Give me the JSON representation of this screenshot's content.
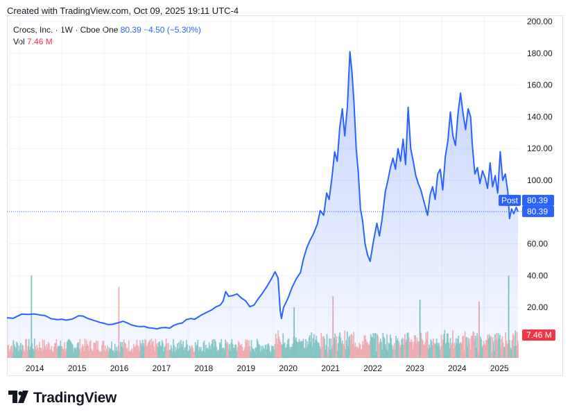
{
  "caption": "Created with TradingView.com, Oct 09, 2025 19:11 UTC-4",
  "legend": {
    "symbol": "Crocs, Inc. · 1W · Cboe One",
    "last": "80.39",
    "change": "−4.50 (−5.30%)",
    "vol_label": "Vol",
    "vol_value": "7.46 M"
  },
  "tags": {
    "post_label": "Post",
    "post_price": "80.39",
    "last_price": "80.39",
    "volume": "7.46 M"
  },
  "footer": {
    "brand": "TradingView",
    "logo_icon": "tradingview-logo-icon"
  },
  "colors": {
    "line": "#2962ff",
    "area_top": "#2962ff",
    "vol_up": "#7fc6bc",
    "vol_down": "#f7a9a7",
    "tag": "#2962ff",
    "vol_tag": "#f23645"
  },
  "chart_data": {
    "type": "area",
    "ylim": [
      0,
      200
    ],
    "y_ticks": [
      "200.00",
      "180.00",
      "160.00",
      "140.00",
      "120.00",
      "100.00",
      "80.00",
      "60.00",
      "40.00",
      "20.00"
    ],
    "x_ticks": [
      {
        "label": "2014",
        "x": 2014.0
      },
      {
        "label": "2015",
        "x": 2015.0
      },
      {
        "label": "2016",
        "x": 2016.0
      },
      {
        "label": "2017",
        "x": 2017.0
      },
      {
        "label": "2018",
        "x": 2018.0
      },
      {
        "label": "2019",
        "x": 2019.0
      },
      {
        "label": "2020",
        "x": 2020.0
      },
      {
        "label": "2021",
        "x": 2021.0
      },
      {
        "label": "2022",
        "x": 2022.0
      },
      {
        "label": "2023",
        "x": 2023.0
      },
      {
        "label": "2024",
        "x": 2024.0
      },
      {
        "label": "2025",
        "x": 2025.0
      }
    ],
    "xlim": [
      2013.7,
      2025.85
    ],
    "grid": true,
    "series": [
      {
        "values": [
          [
            2013.7,
            13.5
          ],
          [
            2013.85,
            13.2
          ],
          [
            2013.95,
            14.5
          ],
          [
            2014.05,
            15.8
          ],
          [
            2014.2,
            15.6
          ],
          [
            2014.35,
            15.9
          ],
          [
            2014.5,
            15.2
          ],
          [
            2014.6,
            14.9
          ],
          [
            2014.75,
            12.9
          ],
          [
            2014.9,
            12.3
          ],
          [
            2015.0,
            12.6
          ],
          [
            2015.1,
            12.0
          ],
          [
            2015.25,
            12.7
          ],
          [
            2015.4,
            14.8
          ],
          [
            2015.5,
            14.6
          ],
          [
            2015.62,
            13.0
          ],
          [
            2015.75,
            11.9
          ],
          [
            2015.9,
            10.6
          ],
          [
            2016.0,
            10.0
          ],
          [
            2016.1,
            9.2
          ],
          [
            2016.2,
            9.4
          ],
          [
            2016.35,
            10.5
          ],
          [
            2016.45,
            11.3
          ],
          [
            2016.55,
            10.2
          ],
          [
            2016.65,
            9.0
          ],
          [
            2016.75,
            8.3
          ],
          [
            2016.85,
            7.9
          ],
          [
            2016.95,
            8.1
          ],
          [
            2017.05,
            7.2
          ],
          [
            2017.15,
            7.0
          ],
          [
            2017.25,
            6.5
          ],
          [
            2017.35,
            7.2
          ],
          [
            2017.45,
            7.4
          ],
          [
            2017.55,
            7.0
          ],
          [
            2017.65,
            8.7
          ],
          [
            2017.75,
            9.7
          ],
          [
            2017.85,
            10.2
          ],
          [
            2017.95,
            12.4
          ],
          [
            2018.05,
            13.0
          ],
          [
            2018.15,
            12.6
          ],
          [
            2018.3,
            15.2
          ],
          [
            2018.45,
            17.2
          ],
          [
            2018.55,
            18.5
          ],
          [
            2018.65,
            20.4
          ],
          [
            2018.75,
            21.5
          ],
          [
            2018.82,
            24.0
          ],
          [
            2018.88,
            30.0
          ],
          [
            2018.95,
            27.0
          ],
          [
            2019.05,
            27.5
          ],
          [
            2019.15,
            28.5
          ],
          [
            2019.25,
            26.0
          ],
          [
            2019.35,
            24.2
          ],
          [
            2019.45,
            20.5
          ],
          [
            2019.55,
            21.5
          ],
          [
            2019.65,
            25.5
          ],
          [
            2019.75,
            29.0
          ],
          [
            2019.85,
            33.0
          ],
          [
            2019.95,
            37.5
          ],
          [
            2020.05,
            42.5
          ],
          [
            2020.12,
            38.5
          ],
          [
            2020.17,
            18.0
          ],
          [
            2020.2,
            13.0
          ],
          [
            2020.25,
            20.0
          ],
          [
            2020.35,
            25.5
          ],
          [
            2020.45,
            32.5
          ],
          [
            2020.55,
            38.0
          ],
          [
            2020.65,
            42.0
          ],
          [
            2020.72,
            50.5
          ],
          [
            2020.8,
            57.5
          ],
          [
            2020.88,
            62.5
          ],
          [
            2020.95,
            66.0
          ],
          [
            2021.05,
            72.5
          ],
          [
            2021.12,
            81.0
          ],
          [
            2021.2,
            78.0
          ],
          [
            2021.27,
            92.0
          ],
          [
            2021.33,
            88.0
          ],
          [
            2021.4,
            103.0
          ],
          [
            2021.46,
            118.0
          ],
          [
            2021.52,
            112.0
          ],
          [
            2021.58,
            133.0
          ],
          [
            2021.64,
            145.0
          ],
          [
            2021.7,
            128.0
          ],
          [
            2021.76,
            146.0
          ],
          [
            2021.82,
            181.0
          ],
          [
            2021.87,
            168.0
          ],
          [
            2021.92,
            148.0
          ],
          [
            2021.97,
            120.0
          ],
          [
            2022.02,
            105.0
          ],
          [
            2022.07,
            82.0
          ],
          [
            2022.12,
            75.0
          ],
          [
            2022.18,
            60.0
          ],
          [
            2022.24,
            53.0
          ],
          [
            2022.3,
            49.0
          ],
          [
            2022.38,
            62.0
          ],
          [
            2022.46,
            73.0
          ],
          [
            2022.52,
            65.0
          ],
          [
            2022.58,
            75.0
          ],
          [
            2022.66,
            93.0
          ],
          [
            2022.72,
            100.0
          ],
          [
            2022.78,
            108.0
          ],
          [
            2022.84,
            114.0
          ],
          [
            2022.9,
            107.0
          ],
          [
            2022.96,
            120.0
          ],
          [
            2023.02,
            112.0
          ],
          [
            2023.08,
            126.0
          ],
          [
            2023.14,
            110.0
          ],
          [
            2023.2,
            146.0
          ],
          [
            2023.26,
            120.0
          ],
          [
            2023.32,
            112.0
          ],
          [
            2023.38,
            103.0
          ],
          [
            2023.44,
            98.0
          ],
          [
            2023.5,
            94.0
          ],
          [
            2023.56,
            88.0
          ],
          [
            2023.62,
            82.0
          ],
          [
            2023.66,
            78.0
          ],
          [
            2023.72,
            91.0
          ],
          [
            2023.78,
            96.0
          ],
          [
            2023.84,
            88.0
          ],
          [
            2023.9,
            104.0
          ],
          [
            2023.96,
            107.0
          ],
          [
            2024.02,
            94.0
          ],
          [
            2024.08,
            115.0
          ],
          [
            2024.14,
            125.0
          ],
          [
            2024.2,
            143.0
          ],
          [
            2024.26,
            128.0
          ],
          [
            2024.32,
            122.0
          ],
          [
            2024.38,
            142.0
          ],
          [
            2024.44,
            155.0
          ],
          [
            2024.5,
            142.0
          ],
          [
            2024.56,
            132.0
          ],
          [
            2024.62,
            145.0
          ],
          [
            2024.68,
            140.0
          ],
          [
            2024.72,
            122.0
          ],
          [
            2024.78,
            104.0
          ],
          [
            2024.84,
            108.0
          ],
          [
            2024.9,
            98.0
          ],
          [
            2024.96,
            106.0
          ],
          [
            2025.02,
            102.0
          ],
          [
            2025.08,
            95.0
          ],
          [
            2025.14,
            111.0
          ],
          [
            2025.2,
            96.0
          ],
          [
            2025.26,
            103.0
          ],
          [
            2025.32,
            92.0
          ],
          [
            2025.38,
            118.0
          ],
          [
            2025.44,
            100.0
          ],
          [
            2025.5,
            104.0
          ],
          [
            2025.56,
            93.0
          ],
          [
            2025.6,
            76.0
          ],
          [
            2025.65,
            82.0
          ],
          [
            2025.7,
            79.0
          ],
          [
            2025.76,
            83.0
          ],
          [
            2025.8,
            80.39
          ]
        ]
      }
    ],
    "volume": {
      "unit": "M",
      "max_height_ref": 44.0,
      "spikes": [
        [
          2014.28,
          44.0
        ],
        [
          2016.35,
          38.0
        ],
        [
          2020.5,
          27.0
        ],
        [
          2021.42,
          33.0
        ],
        [
          2023.48,
          31.0
        ],
        [
          2024.88,
          30.0
        ],
        [
          2025.58,
          44.0
        ],
        [
          2025.8,
          7.46
        ]
      ]
    }
  }
}
